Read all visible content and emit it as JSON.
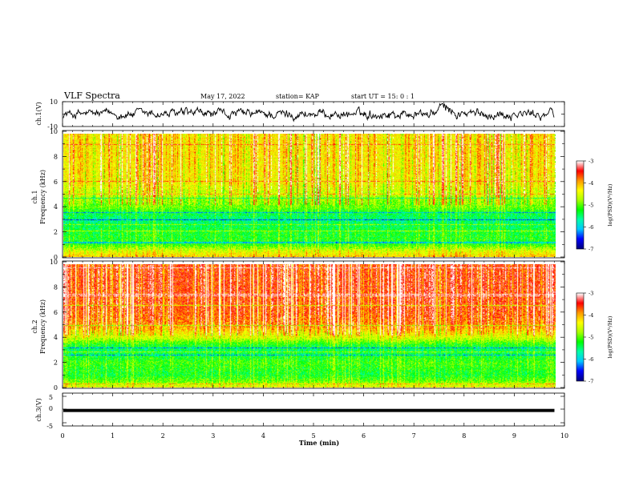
{
  "header": {
    "title": "VLF Spectra",
    "date": "May 17, 2022",
    "station": "station= KAP",
    "start": "start  UT  =   15: 0   : 1"
  },
  "chart_data": [
    {
      "type": "line",
      "panel": "ch1-waveform",
      "ylabel": "ch.1(V)",
      "ylim": [
        -10,
        10
      ],
      "yticks": [
        "10",
        "-10"
      ],
      "xlim": [
        0,
        9.8
      ],
      "description_free": true,
      "noise_amplitude": 4,
      "bump": {
        "x_center": 7.6,
        "height": 6
      }
    },
    {
      "type": "heatmap",
      "panel": "ch1-spectrogram",
      "ylabel": "ch.1\nFrequency (kHz)",
      "ylim": [
        0,
        10
      ],
      "yticks": [
        "0",
        "2",
        "4",
        "6",
        "8",
        "10"
      ],
      "xlim": [
        0,
        9.8
      ],
      "freq_level_profile": [
        {
          "f": 0.0,
          "level": -4.2
        },
        {
          "f": 0.5,
          "level": -4.6
        },
        {
          "f": 1.0,
          "level": -5.2
        },
        {
          "f": 2.0,
          "level": -5.3
        },
        {
          "f": 3.0,
          "level": -5.6
        },
        {
          "f": 3.5,
          "level": -5.4
        },
        {
          "f": 4.0,
          "level": -5.0
        },
        {
          "f": 5.0,
          "level": -4.7
        },
        {
          "f": 6.0,
          "level": -4.4
        },
        {
          "f": 8.0,
          "level": -4.3
        },
        {
          "f": 10.0,
          "level": -4.3
        }
      ],
      "colorbar": {
        "label": "log(PSD)(V²/Hz)",
        "ticks": [
          "-3",
          "-4",
          "-5",
          "-6",
          "-7"
        ],
        "range": [
          -7,
          -3
        ]
      }
    },
    {
      "type": "heatmap",
      "panel": "ch2-spectrogram",
      "ylabel": "ch.2\nFrequency (kHz)",
      "ylim": [
        0,
        10
      ],
      "yticks": [
        "0",
        "2",
        "4",
        "6",
        "8",
        "10"
      ],
      "xlim": [
        0,
        9.8
      ],
      "freq_level_profile": [
        {
          "f": 0.0,
          "level": -4.4
        },
        {
          "f": 0.5,
          "level": -5.0
        },
        {
          "f": 1.0,
          "level": -5.3
        },
        {
          "f": 2.0,
          "level": -5.1
        },
        {
          "f": 3.0,
          "level": -5.5
        },
        {
          "f": 3.5,
          "level": -5.2
        },
        {
          "f": 4.0,
          "level": -4.6
        },
        {
          "f": 5.0,
          "level": -3.9
        },
        {
          "f": 6.0,
          "level": -3.7
        },
        {
          "f": 8.0,
          "level": -3.6
        },
        {
          "f": 10.0,
          "level": -3.6
        }
      ],
      "colorbar": {
        "label": "log(PSD)(V²/Hz)",
        "ticks": [
          "-3",
          "-4",
          "-5",
          "-6",
          "-7"
        ],
        "range": [
          -7,
          -3
        ]
      }
    },
    {
      "type": "line",
      "panel": "ch3-waveform",
      "ylabel": "ch.3(V)",
      "ylim": [
        -5,
        5
      ],
      "yticks": [
        "5",
        "0",
        "-5"
      ],
      "xlim": [
        0,
        9.8
      ],
      "level": -0.3,
      "band_halfwidth": 0.5
    }
  ],
  "xaxis": {
    "label": "Time  (min)",
    "ticks": [
      "0",
      "1",
      "2",
      "3",
      "4",
      "5",
      "6",
      "7",
      "8",
      "9",
      "10"
    ],
    "range": [
      0,
      10
    ]
  },
  "colors": {
    "colormap": [
      "#000080",
      "#0000ff",
      "#00c8ff",
      "#00ffaa",
      "#00ff00",
      "#aaff00",
      "#ffff00",
      "#ff9900",
      "#ff0000",
      "#ffffff"
    ]
  }
}
